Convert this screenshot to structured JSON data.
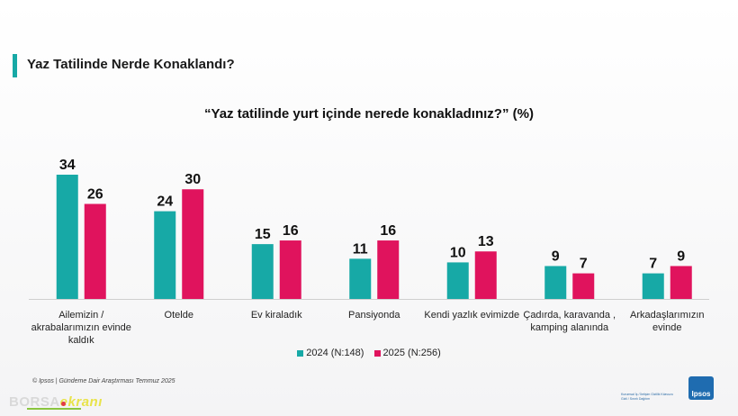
{
  "header": {
    "section_title": "Yaz Tatilinde Nerde Konaklandı?",
    "accent_color": "#17a9a6"
  },
  "chart_data": {
    "type": "bar",
    "title": "“Yaz tatilinde yurt içinde nerede konakladınız?” (%)",
    "categories": [
      [
        "Ailemizin /",
        "akrabalarımızın evinde",
        "kaldık"
      ],
      [
        "Otelde"
      ],
      [
        "Ev kiraladık"
      ],
      [
        "Pansiyonda"
      ],
      [
        "Kendi yazlık evimizde"
      ],
      [
        "Çadırda, karavanda ,",
        "kamping alanında"
      ],
      [
        "Arkadaşlarımızın",
        "evinde"
      ]
    ],
    "series": [
      {
        "name": "2024 (N:148)",
        "color": "#17a9a6",
        "values": [
          34,
          24,
          15,
          11,
          10,
          9,
          7
        ]
      },
      {
        "name": "2025 (N:256)",
        "color": "#e0135d",
        "values": [
          26,
          30,
          16,
          16,
          13,
          7,
          9
        ]
      }
    ],
    "ylim": [
      0,
      34
    ],
    "legend_position": "bottom-center",
    "grid": false
  },
  "footer": {
    "source": "© Ipsos | Gündeme Dair Araştırması Temmuz 2025",
    "watermark_prefix": "BORSA",
    "watermark_suffix": "ekranı",
    "ipsos_tagline": "Kurumsal İş / İletişim Gizlilik Kılavuzu Gizli / Sınırlı Dağıtım",
    "ipsos_logo_text": "Ipsos"
  }
}
